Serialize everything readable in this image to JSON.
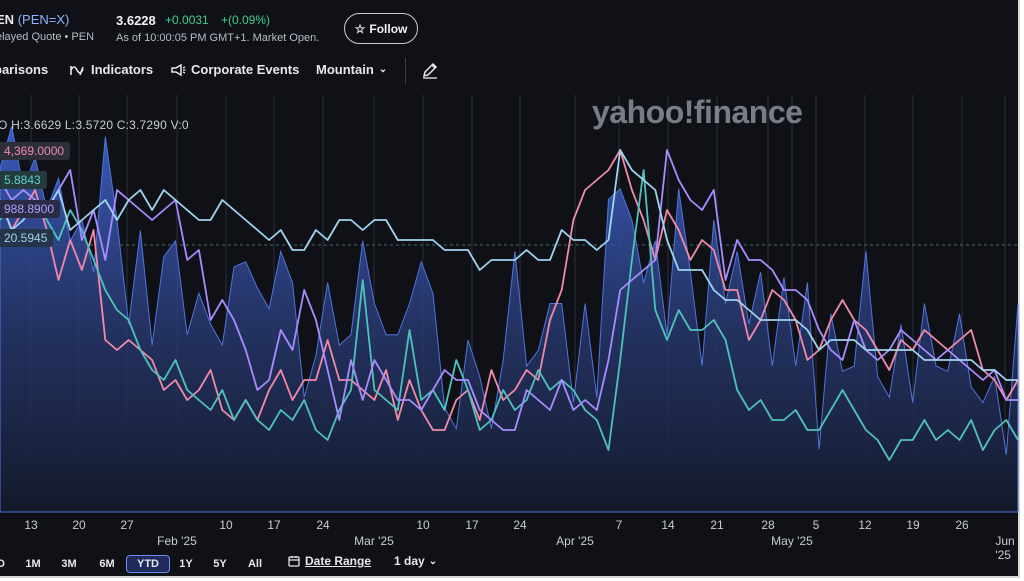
{
  "header": {
    "symbol_name": "EN",
    "symbol_code": "(PEN=X)",
    "quote_type": "elayed Quote • PEN",
    "price": "3.6228",
    "change": "+0.0031",
    "change_pct": "+(0.09%)",
    "as_of": "As of 10:00:05 PM GMT+1. Market Open.",
    "follow_label": "Follow"
  },
  "toolbar": {
    "comparisons_label": "parisons",
    "indicators_label": "Indicators",
    "corporate_events_label": "Corporate Events",
    "chart_style_label": "Mountain"
  },
  "ohlc": "O H:3.6629 L:3.5720 C:3.7290 V:0",
  "comparison_values": [
    "4,369.0000",
    "5.8843",
    "988.8900",
    "20.5945"
  ],
  "watermark": "yahoo!finance",
  "range_buttons": [
    "D",
    "1M",
    "3M",
    "6M",
    "YTD",
    "1Y",
    "5Y",
    "All"
  ],
  "selected_range": "YTD",
  "date_range_label": "Date Range",
  "interval_label": "1 day",
  "colors": {
    "background": "#0f1117",
    "mountain_fill": "#3d5fc4",
    "pink_series": "#f08aa8",
    "teal_series": "#4fc1bb",
    "purple_series": "#a88cff",
    "lightblue_series": "#9fd4ee",
    "positive": "#3fcf8e"
  },
  "chart_data": {
    "type": "area",
    "x_tick_labels": [
      "13",
      "20",
      "27",
      "Feb '25",
      "10",
      "17",
      "24",
      "Mar '25",
      "10",
      "17",
      "24",
      "Apr '25",
      "7",
      "14",
      "21",
      "28",
      "May '25",
      "5",
      "12",
      "19",
      "26",
      "Jun '25"
    ],
    "series": [
      {
        "name": "PEN=X",
        "kind": "area",
        "color": "#3d5fc4",
        "values": [
          3.726,
          3.734,
          3.722,
          3.728,
          3.718,
          3.724,
          3.712,
          3.716,
          3.706,
          3.732,
          3.716,
          3.696,
          3.714,
          3.692,
          3.709,
          3.712,
          3.694,
          3.702,
          3.696,
          3.692,
          3.707,
          3.708,
          3.703,
          3.699,
          3.71,
          3.704,
          3.682,
          3.69,
          3.704,
          3.692,
          3.694,
          3.712,
          3.7,
          3.694,
          3.694,
          3.7,
          3.708,
          3.702,
          3.68,
          3.676,
          3.693,
          3.686,
          3.676,
          3.689,
          3.71,
          3.688,
          3.691,
          3.7,
          3.7,
          3.681,
          3.7,
          3.682,
          3.72,
          3.722,
          3.716,
          3.704,
          3.712,
          3.694,
          3.722,
          3.706,
          3.688,
          3.716,
          3.7,
          3.71,
          3.696,
          3.706,
          3.688,
          3.705,
          3.688,
          3.704,
          3.672,
          3.698,
          3.687,
          3.688,
          3.71,
          3.686,
          3.682,
          3.696,
          3.681,
          3.7,
          3.688,
          3.687,
          3.698,
          3.684,
          3.681,
          3.686,
          3.671,
          3.7
        ]
      },
      {
        "name": "",
        "kind": "line",
        "color": "#f08aa8",
        "values": [
          30,
          27,
          29,
          31,
          27,
          22,
          26,
          23,
          27,
          16,
          15,
          16,
          15,
          14,
          11,
          12,
          10,
          11,
          13,
          9,
          8,
          10,
          8,
          11,
          13,
          10,
          12,
          12,
          16,
          12,
          12,
          11,
          10,
          13,
          8,
          12,
          9,
          7,
          7,
          10,
          11,
          8,
          13,
          10,
          11,
          13,
          12,
          18,
          21,
          28,
          31,
          32,
          33,
          35,
          31,
          28,
          24,
          29,
          27,
          24,
          26,
          25,
          21,
          21,
          16,
          18,
          21,
          20,
          18,
          14,
          15,
          18,
          20,
          18,
          17,
          15,
          13,
          16,
          15,
          17,
          16,
          15,
          16,
          17,
          13,
          12,
          10,
          12
        ]
      },
      {
        "name": "",
        "kind": "line",
        "color": "#4fc1bb",
        "values": [
          28,
          30,
          31,
          30,
          28,
          26,
          29,
          27,
          24,
          21,
          19,
          18,
          15,
          13,
          12,
          14,
          11,
          10,
          9,
          11,
          8,
          10,
          8,
          7,
          9,
          8,
          10,
          7,
          6,
          9,
          11,
          22,
          11,
          10,
          9,
          17,
          10,
          11,
          9,
          14,
          11,
          7,
          8,
          11,
          9,
          10,
          13,
          11,
          12,
          11,
          9,
          8,
          5,
          14,
          24,
          33,
          19,
          16,
          19,
          17,
          17,
          18,
          16,
          11,
          9,
          10,
          8,
          8,
          9,
          7,
          7,
          9,
          11,
          9,
          7,
          6,
          4,
          6,
          6,
          8,
          6,
          7,
          6,
          8,
          5,
          7,
          8,
          6
        ]
      },
      {
        "name": "",
        "kind": "line",
        "color": "#a88cff",
        "values": [
          32,
          30,
          31,
          30,
          29,
          31,
          33,
          26,
          29,
          24,
          31,
          30,
          29,
          28,
          29,
          30,
          24,
          25,
          18,
          20,
          18,
          15,
          11,
          12,
          17,
          15,
          21,
          18,
          13,
          8,
          14,
          10,
          14,
          12,
          10,
          10,
          9,
          11,
          13,
          12,
          12,
          9,
          8,
          7,
          7,
          11,
          10,
          9,
          12,
          9,
          10,
          9,
          14,
          21,
          22,
          23,
          24,
          35,
          32,
          30,
          29,
          31,
          22,
          26,
          24,
          24,
          23,
          21,
          21,
          20,
          17,
          15,
          14,
          18,
          15,
          14,
          15,
          17,
          16,
          15,
          14,
          15,
          14,
          13,
          12,
          13,
          10,
          10
        ]
      },
      {
        "name": "",
        "kind": "line",
        "color": "#9fd4ee",
        "values": [
          30,
          27,
          28,
          30,
          29,
          31,
          27,
          28,
          29,
          30,
          28,
          30,
          31,
          29,
          31,
          30,
          29,
          28,
          28,
          30,
          29,
          28,
          27,
          26,
          27,
          25,
          25,
          27,
          26,
          28,
          28,
          27,
          28,
          28,
          26,
          26,
          26,
          26,
          25,
          25,
          25,
          23,
          24,
          24,
          24,
          25,
          24,
          24,
          27,
          26,
          26,
          25,
          26,
          35,
          33,
          32,
          31,
          26,
          23,
          23,
          23,
          21,
          20,
          20,
          19,
          18,
          18,
          18,
          18,
          17,
          15,
          16,
          16,
          16,
          15,
          15,
          15,
          15,
          15,
          14,
          14,
          14,
          14,
          14,
          13,
          13,
          12,
          12
        ]
      }
    ]
  }
}
